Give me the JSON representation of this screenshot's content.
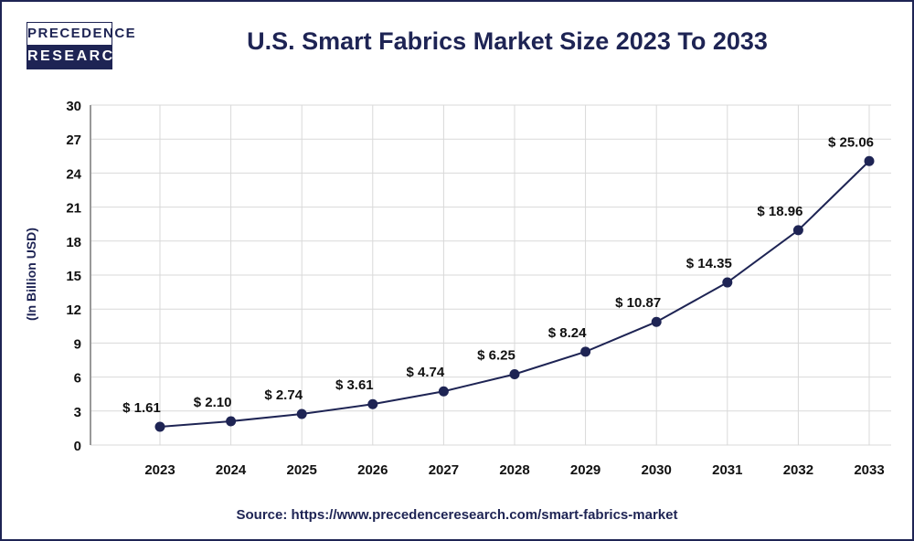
{
  "logo": {
    "line1": "PRECEDENCE",
    "line2": "RESEARCH"
  },
  "source": "Source: https://www.precedenceresearch.com/smart-fabrics-market",
  "colors": {
    "primary": "#1e2454",
    "grid": "#d9d9d9"
  },
  "chart_data": {
    "type": "line",
    "title": "U.S. Smart Fabrics Market Size 2023 To 2033",
    "ylabel": "(In Billion USD)",
    "xlabel": "",
    "categories": [
      "2023",
      "2024",
      "2025",
      "2026",
      "2027",
      "2028",
      "2029",
      "2030",
      "2031",
      "2032",
      "2033"
    ],
    "values": [
      1.61,
      2.1,
      2.74,
      3.61,
      4.74,
      6.25,
      8.24,
      10.87,
      14.35,
      18.96,
      25.06
    ],
    "data_labels": [
      "$ 1.61",
      "$ 2.10",
      "$ 2.74",
      "$ 3.61",
      "$ 4.74",
      "$ 6.25",
      "$ 8.24",
      "$ 10.87",
      "$ 14.35",
      "$ 18.96",
      "$ 25.06"
    ],
    "yticks": [
      "0",
      "3",
      "6",
      "9",
      "12",
      "15",
      "18",
      "21",
      "24",
      "27",
      "30"
    ],
    "ylim": [
      0,
      30
    ],
    "grid": true
  }
}
